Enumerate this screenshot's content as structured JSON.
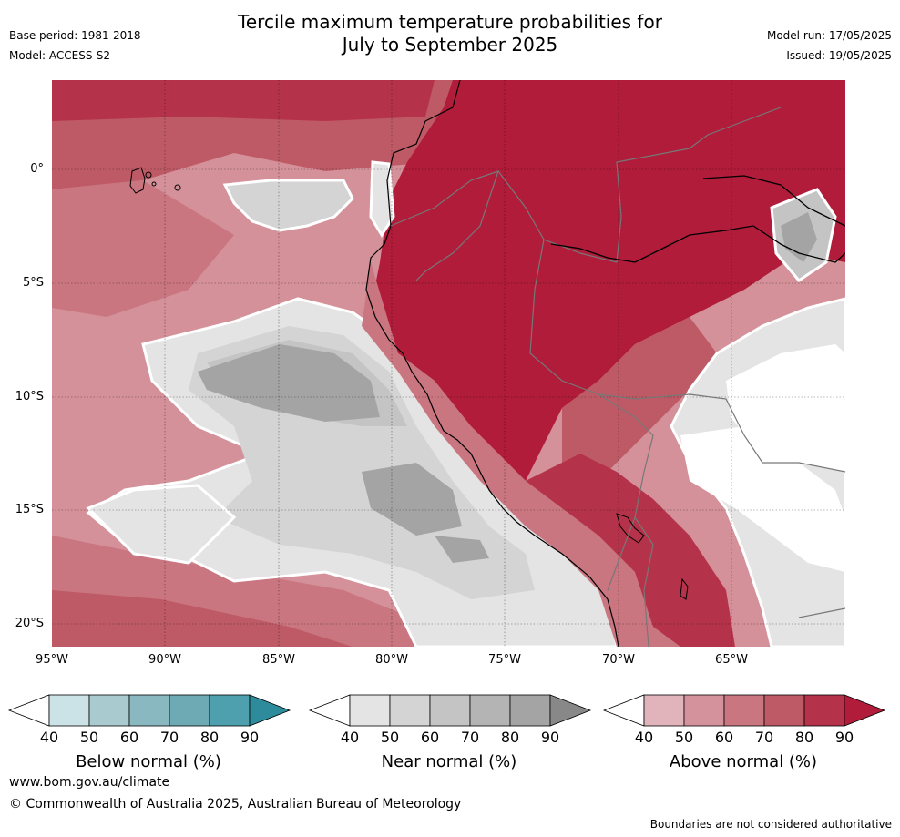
{
  "header": {
    "title_line1": "Tercile maximum temperature probabilities for",
    "title_line2": "July to September 2025",
    "base_period": "Base period: 1981-2018",
    "model": "Model: ACCESS-S2",
    "model_run": "Model run: 17/05/2025",
    "issued": "Issued: 19/05/2025"
  },
  "map": {
    "lat_labels": [
      "0°",
      "5°S",
      "10°S",
      "15°S",
      "20°S"
    ],
    "lon_labels": [
      "95°W",
      "90°W",
      "85°W",
      "80°W",
      "75°W",
      "70°W",
      "65°W"
    ],
    "land_color": "#b01c3a",
    "ocean_base_color": "#d4919a"
  },
  "legends": [
    {
      "title": "Below normal (%)",
      "ticks": [
        "40",
        "50",
        "60",
        "70",
        "80",
        "90"
      ],
      "colors": [
        "#ffffff",
        "#cbe3e7",
        "#a9cbd0",
        "#8ab8c1",
        "#6eaab4",
        "#4ea0ae",
        "#2e8b9b"
      ]
    },
    {
      "title": "Near normal (%)",
      "ticks": [
        "40",
        "50",
        "60",
        "70",
        "80",
        "90"
      ],
      "colors": [
        "#ffffff",
        "#e4e4e4",
        "#d4d4d4",
        "#c4c4c4",
        "#b4b4b4",
        "#a4a4a4",
        "#888888"
      ]
    },
    {
      "title": "Above normal (%)",
      "ticks": [
        "40",
        "50",
        "60",
        "70",
        "80",
        "90"
      ],
      "colors": [
        "#ffffff",
        "#e0b4ba",
        "#d4939c",
        "#c97680",
        "#be5a66",
        "#b5334a",
        "#b01c3a"
      ]
    }
  ],
  "footer": {
    "website": "www.bom.gov.au/climate",
    "copyright": "© Commonwealth of Australia 2025, Australian Bureau of Meteorology",
    "disclaimer": "Boundaries are not considered authoritative"
  }
}
